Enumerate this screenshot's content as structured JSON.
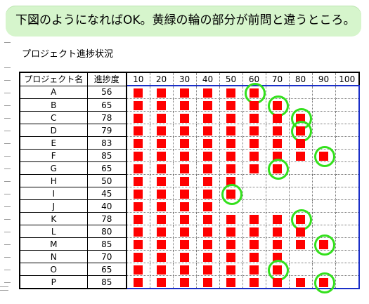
{
  "banner": {
    "text": "下図のようになればOK。黄緑の輪の部分が前問と違うところ。"
  },
  "sheet": {
    "subtitle": "プロジェクト進捗状況",
    "headers": {
      "name": "プロジェクト名",
      "progress": "進捗度"
    },
    "ticks": [
      "10",
      "20",
      "30",
      "40",
      "50",
      "60",
      "70",
      "80",
      "90",
      "100"
    ],
    "rows": [
      {
        "name": "A",
        "progress": "56"
      },
      {
        "name": "B",
        "progress": "65"
      },
      {
        "name": "C",
        "progress": "78"
      },
      {
        "name": "D",
        "progress": "79"
      },
      {
        "name": "E",
        "progress": "83"
      },
      {
        "name": "F",
        "progress": "85"
      },
      {
        "name": "G",
        "progress": "65"
      },
      {
        "name": "H",
        "progress": "50"
      },
      {
        "name": "I",
        "progress": "45"
      },
      {
        "name": "J",
        "progress": "40"
      },
      {
        "name": "K",
        "progress": "78"
      },
      {
        "name": "L",
        "progress": "80"
      },
      {
        "name": "M",
        "progress": "85"
      },
      {
        "name": "N",
        "progress": "70"
      },
      {
        "name": "O",
        "progress": "65"
      },
      {
        "name": "P",
        "progress": "85"
      }
    ],
    "marks_per_row": [
      6,
      7,
      8,
      8,
      8,
      9,
      7,
      5,
      5,
      4,
      8,
      8,
      9,
      7,
      7,
      9
    ],
    "highlight_column_per_row": [
      6,
      7,
      8,
      8,
      null,
      9,
      7,
      null,
      5,
      null,
      8,
      null,
      9,
      null,
      7,
      9
    ]
  },
  "colors": {
    "mark": "#ff0000",
    "highlight_ring": "#33e01c",
    "banner_bg": "#d6f5cc",
    "grid_border": "#1a2fc8"
  }
}
